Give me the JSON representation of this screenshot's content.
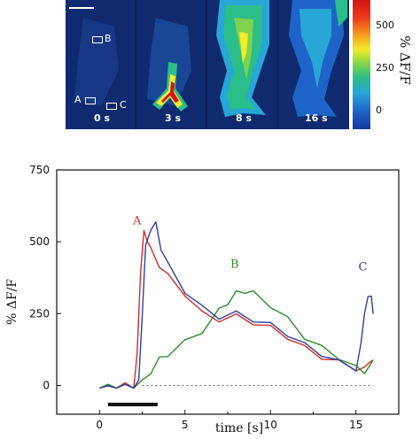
{
  "images": {
    "panels": [
      {
        "label": "0 s"
      },
      {
        "label": "3 s"
      },
      {
        "label": "8 s"
      },
      {
        "label": "16 s"
      }
    ],
    "roi_labels": [
      "A",
      "B",
      "C"
    ],
    "colorbar": {
      "title": "% ΔF/F",
      "ticks": [
        "500",
        "250",
        "0"
      ]
    }
  },
  "chart_data": {
    "type": "line",
    "xlabel": "time [s]",
    "ylabel": "% ΔF/F",
    "xlim": [
      -2.5,
      17.5
    ],
    "ylim": [
      -100,
      750
    ],
    "xticks": [
      0,
      5,
      10,
      15
    ],
    "yticks": [
      0,
      250,
      500,
      750
    ],
    "baseline": 0,
    "stimulus": {
      "start": 0.5,
      "end": 3.4
    },
    "series": [
      {
        "name": "A",
        "color": "#d62a2a",
        "x": [
          0,
          0.5,
          1,
          1.5,
          2,
          2.2,
          2.4,
          2.6,
          2.8,
          3,
          3.5,
          4,
          5,
          6,
          7,
          8,
          9,
          10,
          11,
          12,
          13,
          14,
          15,
          15.5,
          15.8,
          16
        ],
        "y": [
          0,
          -10,
          0,
          0,
          0,
          100,
          400,
          530,
          510,
          470,
          420,
          380,
          320,
          250,
          230,
          240,
          220,
          200,
          170,
          130,
          100,
          80,
          60,
          55,
          90,
          80
        ]
      },
      {
        "name": "B",
        "color": "#2e8b2e",
        "x": [
          0,
          0.5,
          1,
          1.5,
          2,
          2.5,
          3,
          3.5,
          4,
          5,
          6,
          7,
          7.5,
          8,
          8.5,
          9,
          10,
          11,
          12,
          13,
          14,
          15,
          15.5,
          16
        ],
        "y": [
          0,
          -5,
          0,
          -5,
          0,
          10,
          50,
          90,
          110,
          150,
          190,
          260,
          290,
          320,
          330,
          320,
          280,
          230,
          170,
          130,
          100,
          60,
          50,
          80
        ]
      },
      {
        "name": "C",
        "color": "#2f3f9e",
        "x": [
          0,
          0.5,
          1,
          1.5,
          2,
          2.3,
          2.5,
          2.7,
          3,
          3.3,
          3.6,
          4,
          5,
          6,
          7,
          8,
          9,
          10,
          11,
          12,
          13,
          14,
          15,
          15.3,
          15.5,
          15.7,
          15.9,
          16
        ],
        "y": [
          0,
          -10,
          0,
          -5,
          0,
          10,
          250,
          480,
          550,
          560,
          480,
          420,
          330,
          270,
          240,
          250,
          230,
          210,
          180,
          140,
          110,
          80,
          60,
          140,
          260,
          300,
          320,
          240
        ]
      }
    ]
  }
}
